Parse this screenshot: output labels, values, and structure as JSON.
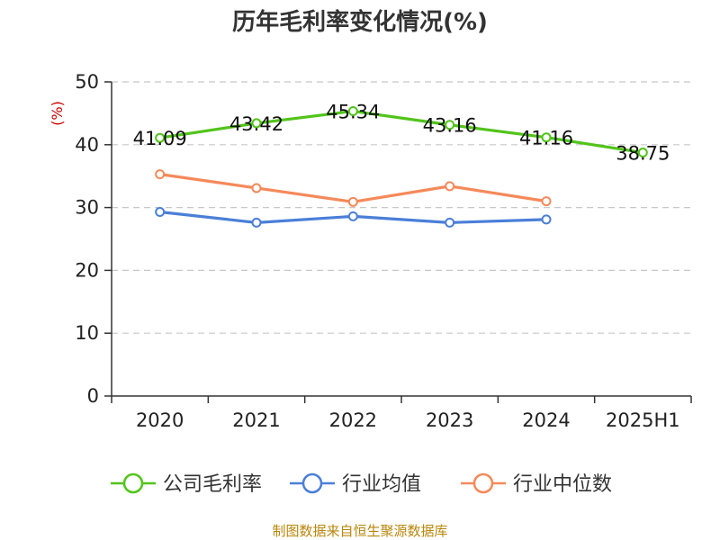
{
  "chart_data": {
    "type": "line",
    "title": "历年毛利率变化情况(%)",
    "y_unit": "(%)",
    "categories": [
      "2020",
      "2021",
      "2022",
      "2023",
      "2024",
      "2025H1"
    ],
    "ylim": [
      0,
      50
    ],
    "yticks": [
      0,
      10,
      20,
      30,
      40,
      50
    ],
    "grid": true,
    "legend_position": "bottom",
    "series": [
      {
        "name": "公司毛利率",
        "color": "#52c41a",
        "values": [
          41.09,
          43.42,
          45.34,
          43.16,
          41.16,
          38.75
        ],
        "labels": [
          "41.09",
          "43.42",
          "45.34",
          "43.16",
          "41.16",
          "38.75"
        ]
      },
      {
        "name": "行业均值",
        "color": "#4a7fd8",
        "values": [
          29.3,
          27.6,
          28.6,
          27.6,
          28.1,
          null
        ]
      },
      {
        "name": "行业中位数",
        "color": "#f5895a",
        "values": [
          35.3,
          33.1,
          30.9,
          33.4,
          31.0,
          null
        ]
      }
    ],
    "source": "制图数据来自恒生聚源数据库"
  }
}
